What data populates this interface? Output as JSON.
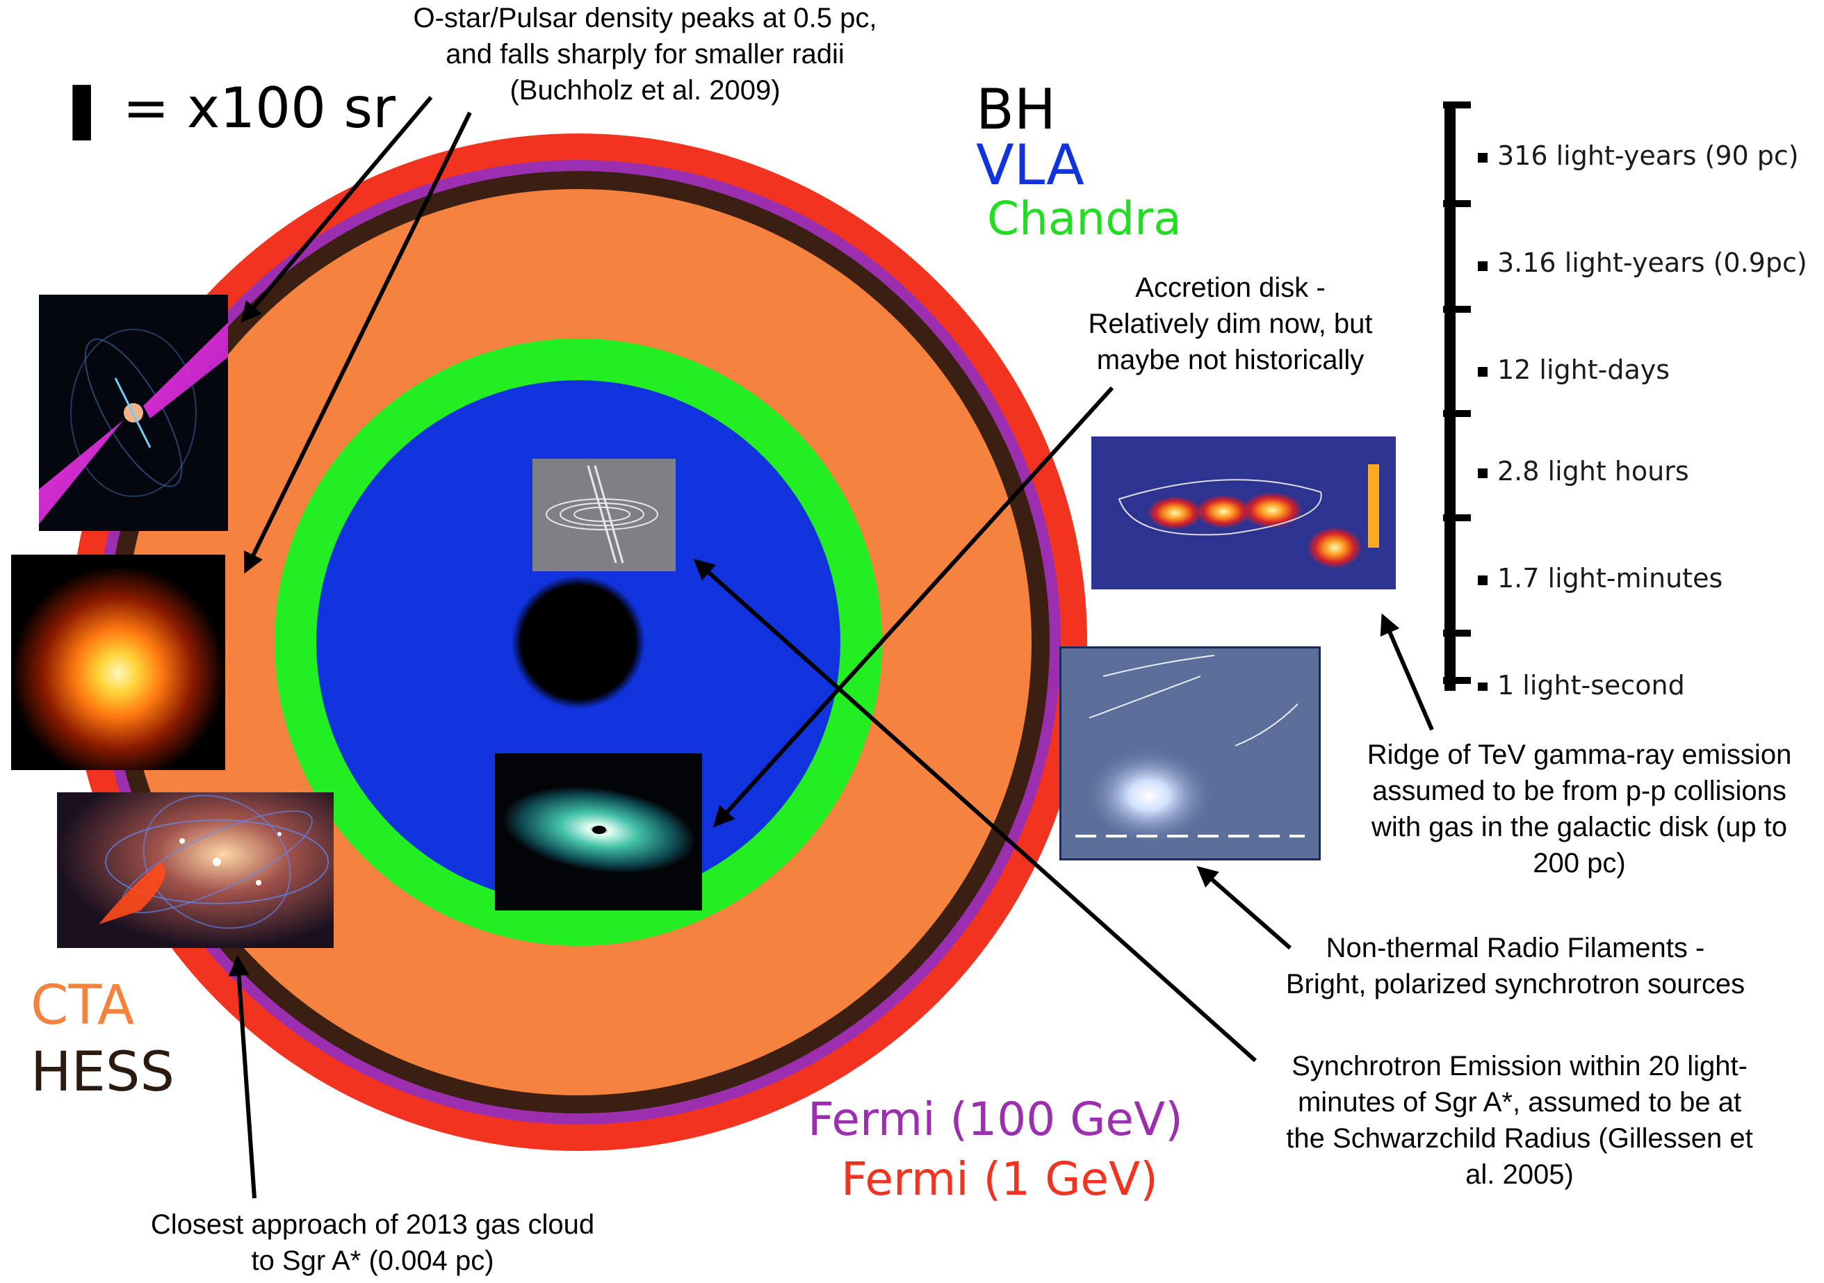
{
  "legend": {
    "scale_note": "❚ = x100 sr",
    "top_right": [
      "BH",
      "VLA",
      "Chandra"
    ],
    "bottom_left": [
      "CTA",
      "HESS"
    ],
    "bottom_center": [
      "Fermi (100 GeV)",
      "Fermi (1 GeV)"
    ]
  },
  "colors": {
    "bh": "#000000",
    "vla": "#1133dd",
    "chandra": "#22ee22",
    "cta": "#f5833f",
    "hess": "#3a1f12",
    "fermi_100gev": "#9b2fb0",
    "fermi_1gev": "#f2331f"
  },
  "scale_ticks": [
    "316 light-years (90 pc)",
    "3.16 light-years (0.9pc)",
    "12 light-days",
    "2.8 light hours",
    "1.7 light-minutes",
    "1 light-second"
  ],
  "annotations": {
    "ostar": [
      "O-star/Pulsar density peaks at 0.5 pc,",
      "and falls sharply for smaller radii",
      "(Buchholz et al. 2009)"
    ],
    "accretion": [
      "Accretion disk -",
      "Relatively dim now, but",
      "maybe not historically"
    ],
    "ridge": [
      "Ridge of TeV gamma-ray emission",
      "assumed to be from p-p collisions",
      "with gas in the galactic disk (up to",
      "200 pc)"
    ],
    "filaments": [
      "Non-thermal Radio Filaments -",
      "Bright, polarized synchrotron sources"
    ],
    "synchrotron": [
      "Synchrotron Emission within 20 light-",
      "minutes of Sgr A*, assumed to be at",
      "the Schwarzchild Radius (Gillessen et",
      "al. 2005)"
    ],
    "gascloud": [
      "Closest approach of 2013 gas cloud",
      "to Sgr A* (0.004 pc)"
    ]
  }
}
